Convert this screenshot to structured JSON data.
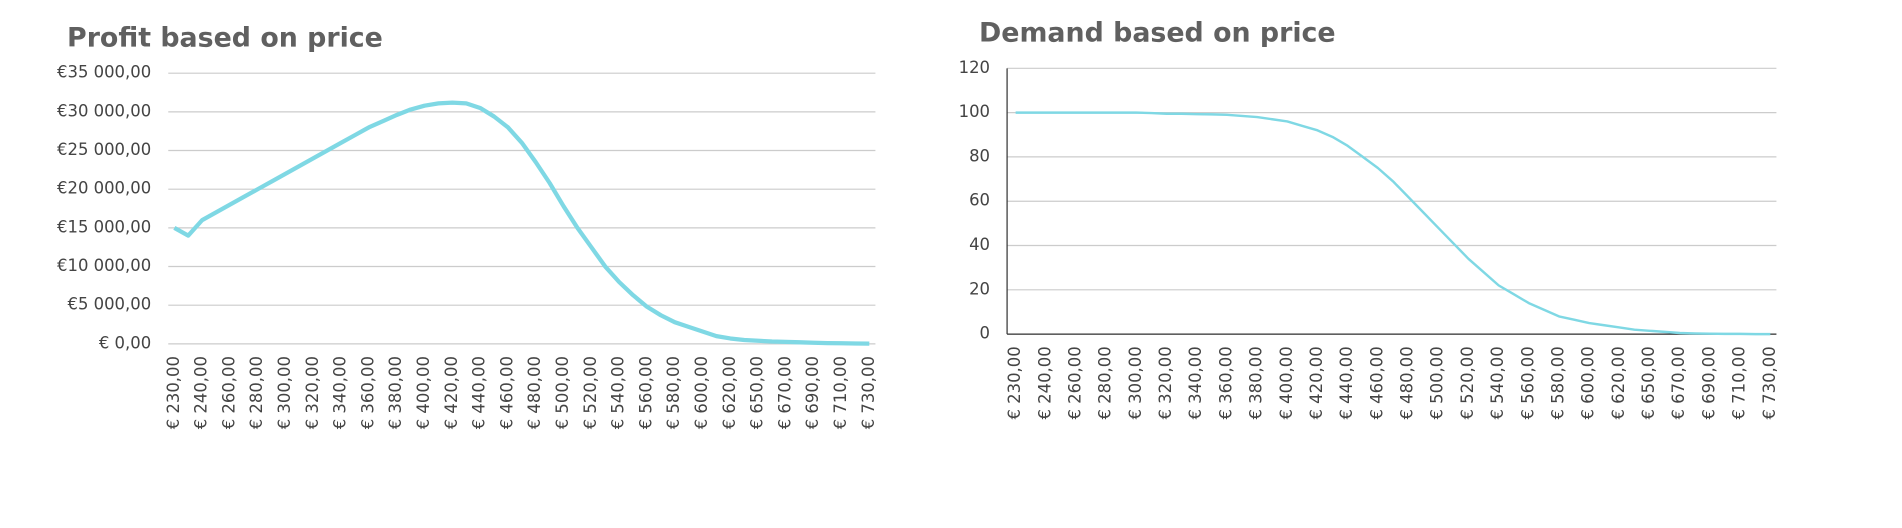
{
  "chart_data": [
    {
      "type": "line",
      "title": "Profit based on price",
      "categories": [
        "€ 230,00",
        null,
        "€ 240,00",
        null,
        "€ 260,00",
        null,
        "€ 280,00",
        null,
        "€ 300,00",
        null,
        "€ 320,00",
        null,
        "€ 340,00",
        null,
        "€ 360,00",
        null,
        "€ 380,00",
        null,
        "€ 400,00",
        null,
        "€ 420,00",
        null,
        "€ 440,00",
        null,
        "€ 460,00",
        null,
        "€ 480,00",
        null,
        "€ 500,00",
        null,
        "€ 520,00",
        null,
        "€ 540,00",
        null,
        "€ 560,00",
        null,
        "€ 580,00",
        null,
        "€ 600,00",
        null,
        "€ 620,00",
        null,
        "€ 650,00",
        null,
        "€ 670,00",
        null,
        "€ 690,00",
        null,
        "€ 710,00",
        null,
        "€ 730,00"
      ],
      "values": [
        15000,
        14000,
        16000,
        17000,
        18000,
        19000,
        20000,
        21000,
        22000,
        23000,
        24000,
        25000,
        26000,
        27000,
        28000,
        28800,
        29600,
        30300,
        30800,
        31100,
        31200,
        31100,
        30500,
        29400,
        28000,
        26000,
        23500,
        20800,
        17800,
        15000,
        12500,
        10000,
        8000,
        6300,
        4800,
        3700,
        2800,
        2200,
        1600,
        1000,
        700,
        500,
        400,
        300,
        250,
        200,
        150,
        100,
        80,
        50,
        30
      ],
      "color": "#7fd8e4",
      "ylim": [
        0,
        35000
      ],
      "yticks": [
        {
          "value": 0,
          "label": "€ 0,00"
        },
        {
          "value": 5000,
          "label": "€5 000,00"
        },
        {
          "value": 10000,
          "label": "€10 000,00"
        },
        {
          "value": 15000,
          "label": "€15 000,00"
        },
        {
          "value": 20000,
          "label": "€20 000,00"
        },
        {
          "value": 25000,
          "label": "€25 000,00"
        },
        {
          "value": 30000,
          "label": "€30 000,00"
        },
        {
          "value": 35000,
          "label": "€35 000,00"
        }
      ],
      "grid": true
    },
    {
      "type": "line",
      "title": "Demand based on price",
      "categories": [
        "€ 230,00",
        null,
        "€ 240,00",
        null,
        "€ 260,00",
        null,
        "€ 280,00",
        null,
        "€ 300,00",
        null,
        "€ 320,00",
        null,
        "€ 340,00",
        null,
        "€ 360,00",
        null,
        "€ 380,00",
        null,
        "€ 400,00",
        null,
        "€ 420,00",
        null,
        "€ 440,00",
        null,
        "€ 460,00",
        null,
        "€ 480,00",
        null,
        "€ 500,00",
        null,
        "€ 520,00",
        null,
        "€ 540,00",
        null,
        "€ 560,00",
        null,
        "€ 580,00",
        null,
        "€ 600,00",
        null,
        "€ 620,00",
        null,
        "€ 650,00",
        null,
        "€ 670,00",
        null,
        "€ 690,00",
        null,
        "€ 710,00",
        null,
        "€ 730,00"
      ],
      "values": [
        100,
        100,
        100,
        100,
        100,
        100,
        100,
        100,
        100,
        99.8,
        99.5,
        99.5,
        99.3,
        99.2,
        99,
        98.5,
        98,
        97,
        96,
        94,
        92,
        89,
        85,
        80,
        75,
        69,
        62,
        55,
        48,
        41,
        34,
        28,
        22,
        18,
        14,
        11,
        8,
        6.5,
        5,
        4,
        3,
        2,
        1.5,
        1,
        0.5,
        0.3,
        0.2,
        0.1,
        0.1,
        0,
        0
      ],
      "color": "#7fd8e4",
      "ylim": [
        0,
        120
      ],
      "yticks": [
        0,
        20,
        40,
        60,
        80,
        100,
        120
      ],
      "grid": true,
      "axis_lines": true
    }
  ]
}
